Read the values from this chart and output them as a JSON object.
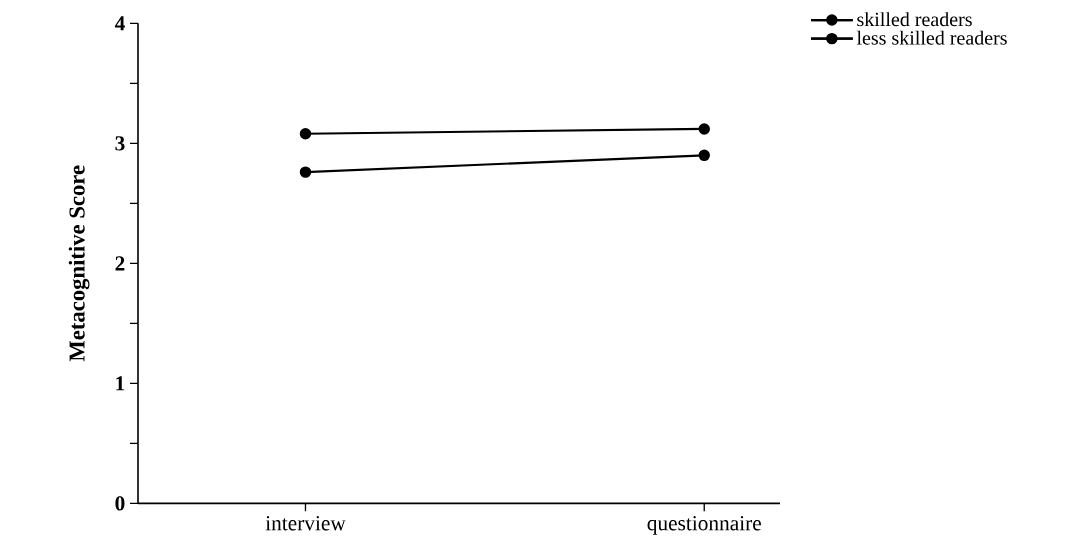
{
  "chart_data": {
    "type": "line",
    "ylabel": "Metacognitive Score",
    "categories": [
      "interview",
      "questionnaire"
    ],
    "series": [
      {
        "name": "skilled readers",
        "color": "#000000",
        "values": [
          3.08,
          3.12
        ],
        "marker": "circle"
      },
      {
        "name": "less skilled readers",
        "color": "#000000",
        "values": [
          2.76,
          2.9
        ],
        "marker": "circle"
      }
    ],
    "ylim": [
      0,
      4
    ],
    "yticks": [
      0,
      {
        "value": 0.5,
        "label": null
      },
      1,
      {
        "value": 1.5,
        "label": null
      },
      2,
      {
        "value": 2.5,
        "label": null
      },
      3,
      {
        "value": 3.5,
        "label": null
      },
      4
    ],
    "grid": false,
    "legend": "top right",
    "line_style": "solid"
  }
}
